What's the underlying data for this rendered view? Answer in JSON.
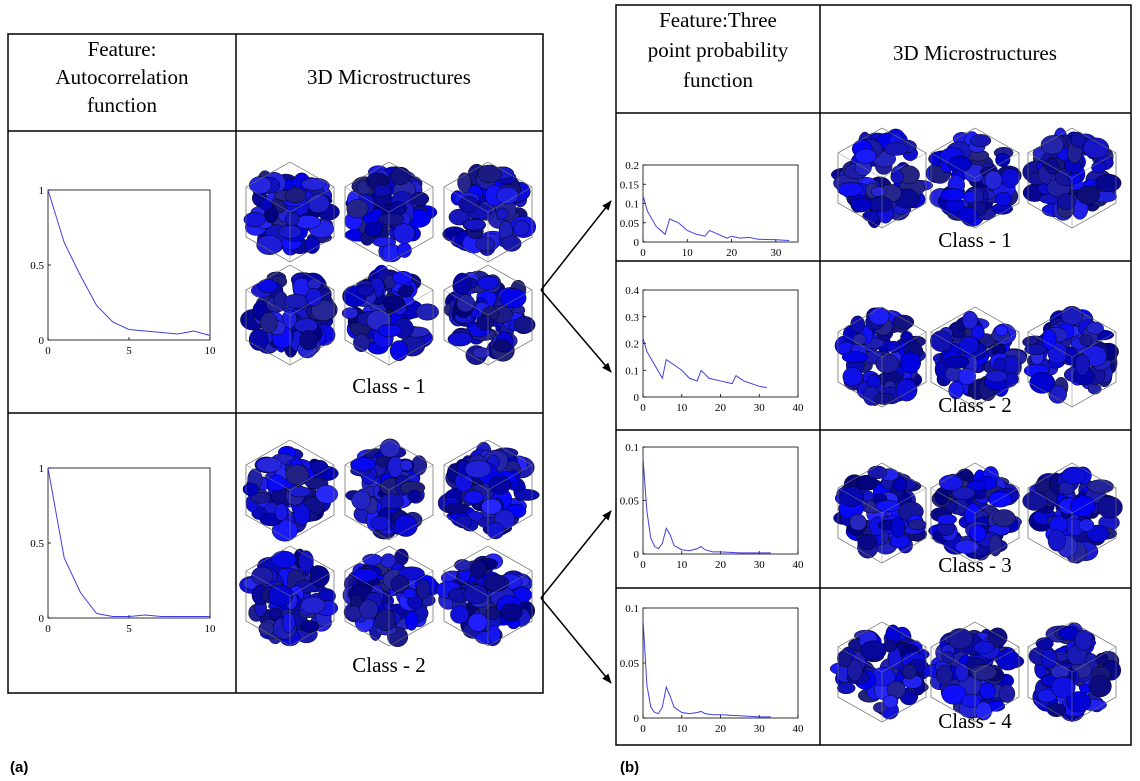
{
  "panels": [
    {
      "label": "(a)",
      "feature_header": [
        "Feature:",
        "Autocorrelation",
        "function"
      ],
      "image_header": "3D Microstructures",
      "rows": [
        {
          "class_label": "Class - 1",
          "chart": {
            "type": "line",
            "x": [
              0,
              1,
              2,
              3,
              4,
              5,
              6,
              7,
              8,
              9,
              10
            ],
            "values": [
              1,
              0.65,
              0.43,
              0.23,
              0.12,
              0.07,
              0.06,
              0.05,
              0.04,
              0.06,
              0.03
            ],
            "xlim": [
              0,
              10
            ],
            "ylim": [
              0,
              1
            ],
            "xticks": [
              0,
              5,
              10
            ],
            "yticks": [
              0,
              0.5,
              1
            ],
            "color": "#4040e0"
          }
        },
        {
          "class_label": "Class - 2",
          "chart": {
            "type": "line",
            "x": [
              0,
              1,
              2,
              3,
              4,
              5,
              6,
              7,
              8,
              9,
              10
            ],
            "values": [
              1,
              0.4,
              0.17,
              0.03,
              0.01,
              0.01,
              0.02,
              0.01,
              0.01,
              0.01,
              0.01
            ],
            "xlim": [
              0,
              10
            ],
            "ylim": [
              0,
              1
            ],
            "xticks": [
              0,
              5,
              10
            ],
            "yticks": [
              0,
              0.5,
              1
            ],
            "color": "#4040e0"
          }
        }
      ]
    },
    {
      "label": "(b)",
      "feature_header": [
        "Feature:Three",
        "point probability",
        "function"
      ],
      "image_header": "3D Microstructures",
      "rows": [
        {
          "class_label": "Class - 1",
          "chart": {
            "type": "line",
            "x": [
              0,
              1,
              3,
              5,
              6,
              8,
              10,
              12,
              14,
              15,
              17,
              19,
              20,
              22,
              24,
              26,
              30,
              33
            ],
            "values": [
              0.12,
              0.08,
              0.04,
              0.02,
              0.06,
              0.05,
              0.03,
              0.02,
              0.015,
              0.03,
              0.02,
              0.01,
              0.015,
              0.01,
              0.012,
              0.007,
              0.006,
              0.004
            ],
            "xlim": [
              0,
              35
            ],
            "ylim": [
              0,
              0.2
            ],
            "xticks": [
              0,
              10,
              20,
              30
            ],
            "yticks": [
              0,
              0.05,
              0.1,
              0.15,
              0.2
            ],
            "color": "#4040e0"
          }
        },
        {
          "class_label": "Class - 2",
          "chart": {
            "type": "line",
            "x": [
              0,
              1,
              3,
              5,
              6,
              8,
              10,
              12,
              14,
              15,
              17,
              20,
              23,
              24,
              26,
              30,
              32
            ],
            "values": [
              0.22,
              0.17,
              0.12,
              0.07,
              0.14,
              0.12,
              0.1,
              0.07,
              0.06,
              0.1,
              0.07,
              0.06,
              0.05,
              0.08,
              0.06,
              0.04,
              0.035
            ],
            "xlim": [
              0,
              40
            ],
            "ylim": [
              0,
              0.4
            ],
            "xticks": [
              0,
              10,
              20,
              30,
              40
            ],
            "yticks": [
              0,
              0.1,
              0.2,
              0.3,
              0.4
            ],
            "color": "#4040e0"
          }
        },
        {
          "class_label": "Class - 3",
          "chart": {
            "type": "line",
            "x": [
              0,
              1,
              2,
              3,
              4,
              5,
              6,
              7,
              8,
              10,
              12,
              14,
              15,
              16,
              18,
              20,
              25,
              30,
              33
            ],
            "values": [
              0.09,
              0.04,
              0.015,
              0.007,
              0.005,
              0.01,
              0.024,
              0.018,
              0.008,
              0.004,
              0.003,
              0.005,
              0.007,
              0.004,
              0.002,
              0.002,
              0.001,
              0.001,
              0.001
            ],
            "xlim": [
              0,
              40
            ],
            "ylim": [
              0,
              0.1
            ],
            "xticks": [
              0,
              10,
              20,
              30,
              40
            ],
            "yticks": [
              0,
              0.05,
              0.1
            ],
            "color": "#4040e0"
          }
        },
        {
          "class_label": "Class - 4",
          "chart": {
            "type": "line",
            "x": [
              0,
              1,
              2,
              3,
              4,
              5,
              6,
              7,
              8,
              10,
              12,
              14,
              15,
              16,
              18,
              20,
              25,
              30,
              33
            ],
            "values": [
              0.09,
              0.03,
              0.01,
              0.005,
              0.004,
              0.01,
              0.028,
              0.02,
              0.01,
              0.005,
              0.004,
              0.005,
              0.006,
              0.004,
              0.003,
              0.003,
              0.002,
              0.001,
              0.001
            ],
            "xlim": [
              0,
              40
            ],
            "ylim": [
              0,
              0.1
            ],
            "xticks": [
              0,
              10,
              20,
              30,
              40
            ],
            "yticks": [
              0,
              0.05,
              0.1
            ],
            "color": "#4040e0"
          }
        }
      ]
    }
  ]
}
